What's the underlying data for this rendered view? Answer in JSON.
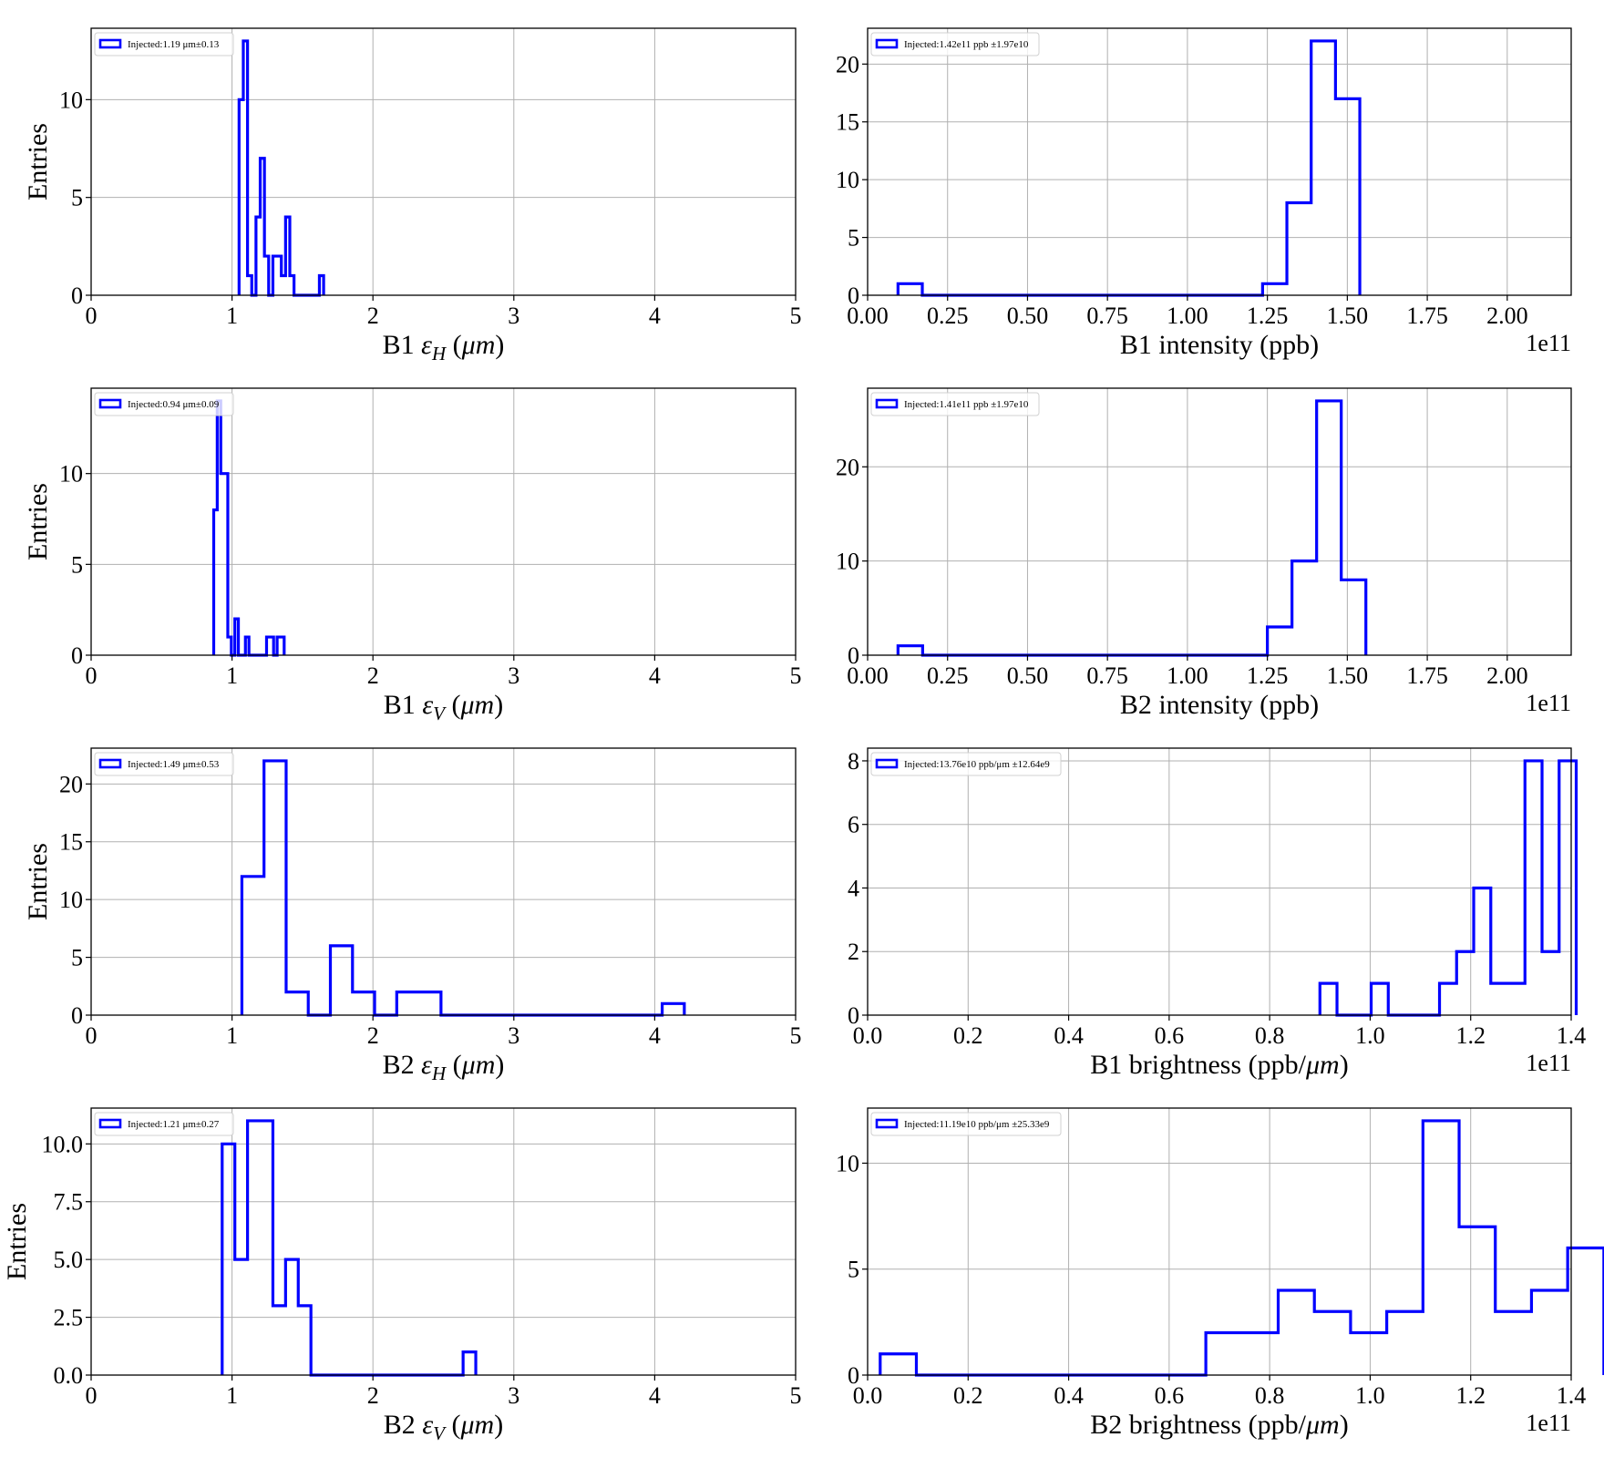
{
  "chart_data": [
    {
      "type": "histogram",
      "xlabel": "B1 ε_H (μm)",
      "xlabel_parts": [
        "B1 ",
        "ε",
        "H",
        " (",
        "μm",
        ")"
      ],
      "ylabel": "Entries",
      "xlim": [
        0,
        5
      ],
      "ylim": [
        0,
        13.65
      ],
      "xticks": [
        0,
        1,
        2,
        3,
        4,
        5
      ],
      "xtick_labels": [
        "0",
        "1",
        "2",
        "3",
        "4",
        "5"
      ],
      "yticks": [
        0,
        5,
        10
      ],
      "ytick_labels": [
        "0",
        "5",
        "10"
      ],
      "offset_text": "",
      "legend": "Injected:1.19 μm±0.13",
      "grid": true,
      "color": "#0000ff",
      "bin_edges": [
        1.05,
        1.08,
        1.11,
        1.14,
        1.17,
        1.2,
        1.23,
        1.26,
        1.29,
        1.32,
        1.35,
        1.38,
        1.41,
        1.44,
        1.47,
        1.5,
        1.53,
        1.56,
        1.59,
        1.62,
        1.65
      ],
      "counts": [
        10,
        13,
        1,
        0,
        4,
        7,
        2,
        0,
        2,
        2,
        1,
        4,
        1,
        0,
        0,
        0,
        0,
        0,
        0,
        1
      ]
    },
    {
      "type": "histogram",
      "xlabel": "B1 intensity (ppb)",
      "xlabel_parts": [
        "B1 intensity (ppb)",
        "",
        "",
        "",
        "",
        ""
      ],
      "ylabel": "",
      "xlim": [
        0,
        2.2
      ],
      "ylim": [
        0,
        23.1
      ],
      "xticks": [
        0,
        0.25,
        0.5,
        0.75,
        1.0,
        1.25,
        1.5,
        1.75,
        2.0
      ],
      "xtick_labels": [
        "0.00",
        "0.25",
        "0.50",
        "0.75",
        "1.00",
        "1.25",
        "1.50",
        "1.75",
        "2.00"
      ],
      "yticks": [
        0,
        5,
        10,
        15,
        20
      ],
      "ytick_labels": [
        "0",
        "5",
        "10",
        "15",
        "20"
      ],
      "offset_text": "1e11",
      "legend": "Injected:1.42e11 ppb ±1.97e10",
      "grid": true,
      "color": "#0000ff",
      "bin_edges": [
        0.095,
        0.171,
        0.247,
        0.323,
        0.399,
        0.475,
        0.551,
        0.627,
        0.703,
        0.779,
        0.855,
        0.931,
        1.007,
        1.083,
        1.159,
        1.235,
        1.311,
        1.387,
        1.463,
        1.539
      ],
      "counts": [
        1,
        0,
        0,
        0,
        0,
        0,
        0,
        0,
        0,
        0,
        0,
        0,
        0,
        0,
        0,
        1,
        8,
        22,
        17
      ]
    },
    {
      "type": "histogram",
      "xlabel": "B1 ε_V (μm)",
      "xlabel_parts": [
        "B1 ",
        "ε",
        "V",
        " (",
        "μm",
        ")"
      ],
      "ylabel": "Entries",
      "xlim": [
        0,
        5
      ],
      "ylim": [
        0,
        14.7
      ],
      "xticks": [
        0,
        1,
        2,
        3,
        4,
        5
      ],
      "xtick_labels": [
        "0",
        "1",
        "2",
        "3",
        "4",
        "5"
      ],
      "yticks": [
        0,
        5,
        10
      ],
      "ytick_labels": [
        "0",
        "5",
        "10"
      ],
      "offset_text": "",
      "legend": "Injected:0.94 μm±0.09",
      "grid": true,
      "color": "#0000ff",
      "bin_edges": [
        0.87,
        0.895,
        0.92,
        0.945,
        0.97,
        0.995,
        1.02,
        1.045,
        1.07,
        1.095,
        1.12,
        1.145,
        1.17,
        1.195,
        1.22,
        1.245,
        1.27,
        1.295,
        1.32,
        1.345,
        1.37
      ],
      "counts": [
        8,
        14,
        10,
        10,
        1,
        0,
        2,
        0,
        0,
        1,
        0,
        0,
        0,
        0,
        0,
        1,
        1,
        0,
        1,
        1
      ]
    },
    {
      "type": "histogram",
      "xlabel": "B2 intensity (ppb)",
      "xlabel_parts": [
        "B2 intensity (ppb)",
        "",
        "",
        "",
        "",
        ""
      ],
      "ylabel": "",
      "xlim": [
        0,
        2.2
      ],
      "ylim": [
        0,
        28.35
      ],
      "xticks": [
        0,
        0.25,
        0.5,
        0.75,
        1.0,
        1.25,
        1.5,
        1.75,
        2.0
      ],
      "xtick_labels": [
        "0.00",
        "0.25",
        "0.50",
        "0.75",
        "1.00",
        "1.25",
        "1.50",
        "1.75",
        "2.00"
      ],
      "yticks": [
        0,
        10,
        20
      ],
      "ytick_labels": [
        "0",
        "10",
        "20"
      ],
      "offset_text": "1e11",
      "legend": "Injected:1.41e11 ppb ±1.97e10",
      "grid": true,
      "color": "#0000ff",
      "bin_edges": [
        0.095,
        0.172,
        0.249,
        0.326,
        0.403,
        0.48,
        0.557,
        0.634,
        0.711,
        0.788,
        0.865,
        0.942,
        1.019,
        1.096,
        1.173,
        1.25,
        1.327,
        1.404,
        1.481,
        1.558
      ],
      "counts": [
        1,
        0,
        0,
        0,
        0,
        0,
        0,
        0,
        0,
        0,
        0,
        0,
        0,
        0,
        0,
        3,
        10,
        27,
        8
      ]
    },
    {
      "type": "histogram",
      "xlabel": "B2 ε_H (μm)",
      "xlabel_parts": [
        "B2 ",
        "ε",
        "H",
        " (",
        "μm",
        ")"
      ],
      "ylabel": "Entries",
      "xlim": [
        0,
        5
      ],
      "ylim": [
        0,
        23.1
      ],
      "xticks": [
        0,
        1,
        2,
        3,
        4,
        5
      ],
      "xtick_labels": [
        "0",
        "1",
        "2",
        "3",
        "4",
        "5"
      ],
      "yticks": [
        0,
        5,
        10,
        15,
        20
      ],
      "ytick_labels": [
        "0",
        "5",
        "10",
        "15",
        "20"
      ],
      "offset_text": "",
      "legend": "Injected:1.49 μm±0.53",
      "grid": true,
      "color": "#0000ff",
      "bin_edges": [
        1.07,
        1.227,
        1.384,
        1.541,
        1.698,
        1.855,
        2.012,
        2.169,
        2.326,
        2.483,
        2.64,
        2.797,
        2.954,
        3.111,
        3.268,
        3.425,
        3.582,
        3.739,
        3.896,
        4.053,
        4.21
      ],
      "counts": [
        12,
        22,
        2,
        0,
        6,
        2,
        0,
        2,
        2,
        0,
        0,
        0,
        0,
        0,
        0,
        0,
        0,
        0,
        0,
        1
      ]
    },
    {
      "type": "histogram",
      "xlabel": "B1 brightness (ppb/μm)",
      "xlabel_parts": [
        "B1 brightness (ppb/",
        "μm",
        ")",
        "",
        "",
        ""
      ],
      "ylabel": "",
      "xlim": [
        0,
        1.4
      ],
      "ylim": [
        0,
        8.4
      ],
      "xticks": [
        0,
        0.2,
        0.4,
        0.6,
        0.8,
        1.0,
        1.2,
        1.4
      ],
      "xtick_labels": [
        "0.0",
        "0.2",
        "0.4",
        "0.6",
        "0.8",
        "1.0",
        "1.2",
        "1.4"
      ],
      "yticks": [
        0,
        2,
        4,
        6,
        8
      ],
      "ytick_labels": [
        "0",
        "2",
        "4",
        "6",
        "8"
      ],
      "offset_text": "1e11",
      "legend": "Injected:13.76e10 ppb/μm ±12.64e9",
      "grid": true,
      "color": "#0000ff",
      "bin_edges": [
        0.9,
        0.934,
        0.968,
        1.002,
        1.036,
        1.07,
        1.104,
        1.138,
        1.172,
        1.206,
        1.24,
        1.274,
        1.308,
        1.342,
        1.376,
        1.41
      ],
      "counts": [
        1,
        0,
        0,
        1,
        0,
        0,
        0,
        1,
        2,
        4,
        1,
        1,
        8,
        2,
        8
      ]
    },
    {
      "type": "histogram",
      "xlabel": "B2 ε_V (μm)",
      "xlabel_parts": [
        "B2 ",
        "ε",
        "V",
        " (",
        "μm",
        ")"
      ],
      "ylabel": "Entries",
      "xlim": [
        0,
        5
      ],
      "ylim": [
        0,
        11.55
      ],
      "xticks": [
        0,
        1,
        2,
        3,
        4,
        5
      ],
      "xtick_labels": [
        "0",
        "1",
        "2",
        "3",
        "4",
        "5"
      ],
      "yticks": [
        0,
        2.5,
        5,
        7.5,
        10
      ],
      "ytick_labels": [
        "0.0",
        "2.5",
        "5.0",
        "7.5",
        "10.0"
      ],
      "offset_text": "",
      "legend": "Injected:1.21 μm±0.27",
      "grid": true,
      "color": "#0000ff",
      "bin_edges": [
        0.93,
        1.02,
        1.11,
        1.2,
        1.29,
        1.38,
        1.47,
        1.56,
        1.65,
        1.74,
        1.83,
        1.92,
        2.01,
        2.1,
        2.19,
        2.28,
        2.37,
        2.46,
        2.55,
        2.64,
        2.73
      ],
      "counts": [
        10,
        5,
        11,
        11,
        3,
        5,
        3,
        0,
        0,
        0,
        0,
        0,
        0,
        0,
        0,
        0,
        0,
        0,
        0,
        1
      ]
    },
    {
      "type": "histogram",
      "xlabel": "B2 brightness (ppb/μm)",
      "xlabel_parts": [
        "B2 brightness (ppb/",
        "μm",
        ")",
        "",
        "",
        ""
      ],
      "ylabel": "",
      "xlim": [
        0,
        1.4
      ],
      "ylim": [
        0,
        12.6
      ],
      "xticks": [
        0,
        0.2,
        0.4,
        0.6,
        0.8,
        1.0,
        1.2,
        1.4
      ],
      "xtick_labels": [
        "0.0",
        "0.2",
        "0.4",
        "0.6",
        "0.8",
        "1.0",
        "1.2",
        "1.4"
      ],
      "yticks": [
        0,
        5,
        10
      ],
      "ytick_labels": [
        "0",
        "5",
        "10"
      ],
      "offset_text": "1e11",
      "legend": "Injected:11.19e10 ppb/μm ±25.33e9",
      "grid": true,
      "color": "#0000ff",
      "bin_edges": [
        0.025,
        0.097,
        0.169,
        0.241,
        0.313,
        0.385,
        0.457,
        0.529,
        0.601,
        0.673,
        0.745,
        0.817,
        0.889,
        0.961,
        1.033,
        1.105,
        1.177,
        1.249,
        1.321,
        1.393,
        1.465
      ],
      "counts": [
        1,
        0,
        0,
        0,
        0,
        0,
        0,
        0,
        0,
        2,
        2,
        4,
        3,
        2,
        3,
        12,
        7,
        3,
        4,
        6
      ]
    }
  ]
}
